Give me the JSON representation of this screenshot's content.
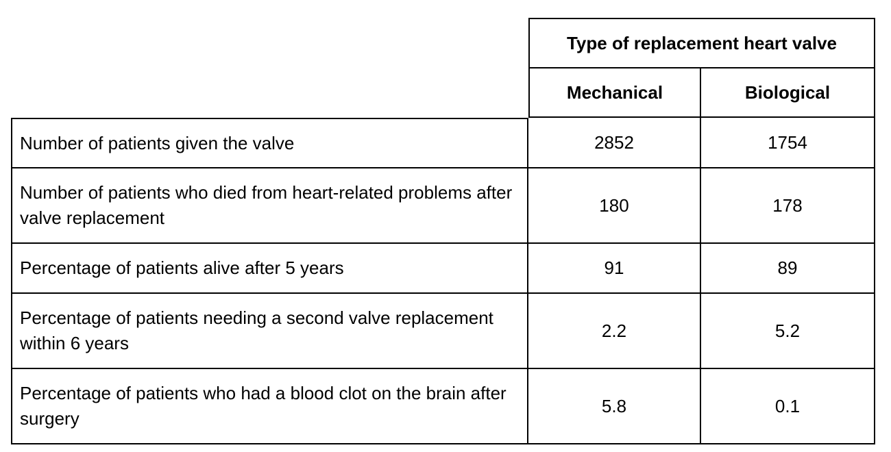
{
  "header": {
    "group_title": "Type of replacement heart valve",
    "columns": [
      "Mechanical",
      "Biological"
    ]
  },
  "rows": [
    {
      "label": "Number of patients given the valve",
      "mechanical": "2852",
      "biological": "1754"
    },
    {
      "label": "Number of patients who died from heart-related problems after valve replacement",
      "mechanical": "180",
      "biological": "178"
    },
    {
      "label": "Percentage of patients alive after 5 years",
      "mechanical": "91",
      "biological": "89"
    },
    {
      "label": "Percentage of patients needing a second valve replacement within 6 years",
      "mechanical": "2.2",
      "biological": "5.2"
    },
    {
      "label": "Percentage of patients who had a blood clot on the brain after surgery",
      "mechanical": "5.8",
      "biological": "0.1"
    }
  ]
}
